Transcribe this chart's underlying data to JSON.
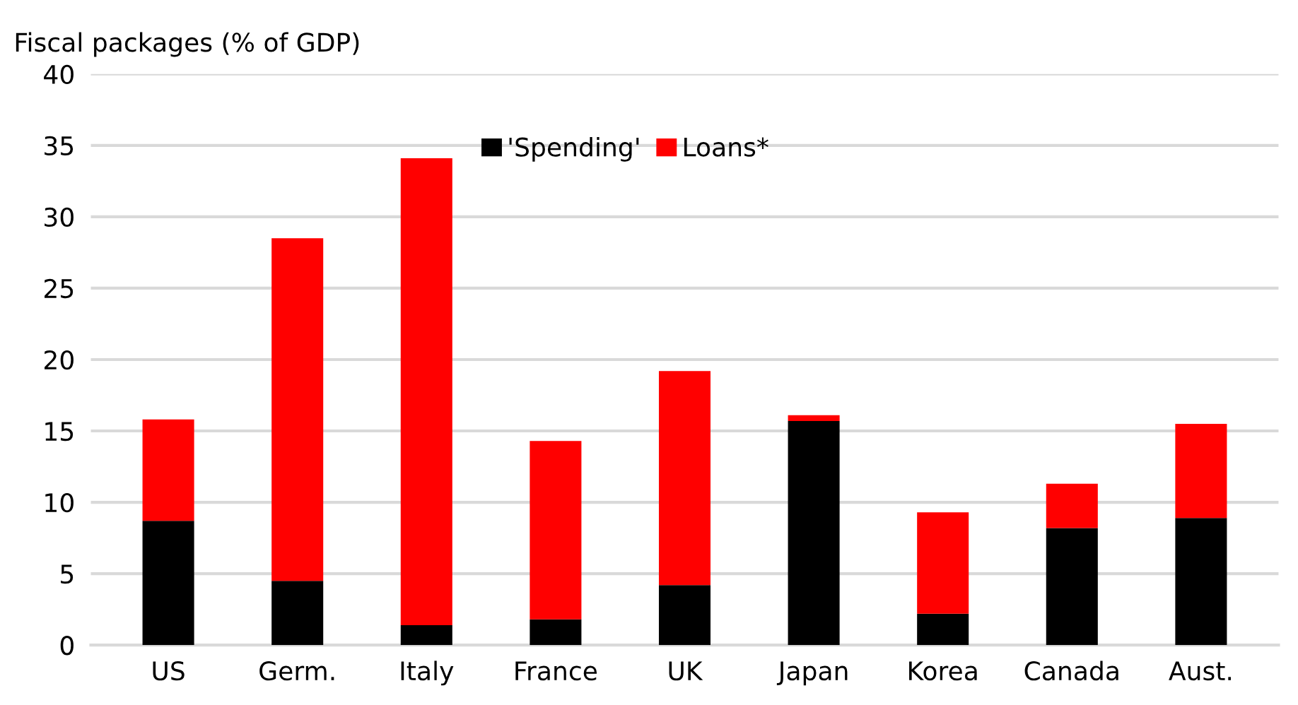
{
  "chart_data": {
    "type": "bar",
    "stacked": true,
    "ylabel": "Fiscal packages (% of GDP)",
    "categories": [
      "US",
      "Germ.",
      "Italy",
      "France",
      "UK",
      "Japan",
      "Korea",
      "Canada",
      "Aust."
    ],
    "series": [
      {
        "name": "'Spending'",
        "color": "#000000",
        "values": [
          8.7,
          4.5,
          1.4,
          1.8,
          4.2,
          15.7,
          2.2,
          8.2,
          8.9
        ]
      },
      {
        "name": "Loans*",
        "color": "#ff0000",
        "values": [
          7.1,
          24.0,
          32.7,
          12.5,
          15.0,
          0.4,
          7.1,
          3.1,
          6.6
        ]
      }
    ],
    "ylim": [
      0,
      40
    ],
    "yticks": [
      0,
      5,
      10,
      15,
      20,
      25,
      30,
      35,
      40
    ],
    "grid": "y",
    "legend": "top"
  }
}
